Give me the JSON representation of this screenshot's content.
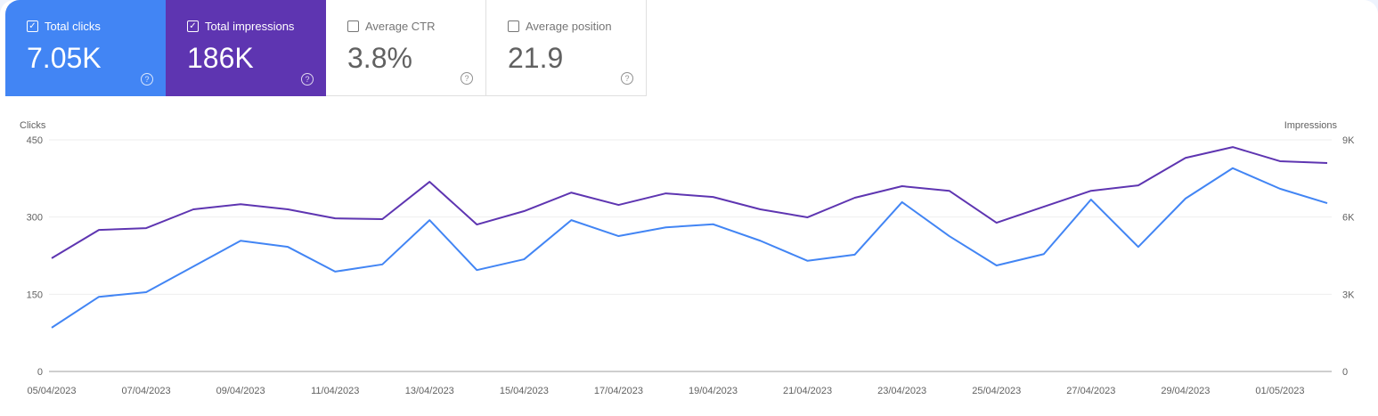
{
  "metrics": [
    {
      "label": "Total clicks",
      "value": "7.05K",
      "checked": true,
      "color": "#4285f4"
    },
    {
      "label": "Total impressions",
      "value": "186K",
      "checked": true,
      "color": "#5e35b1"
    },
    {
      "label": "Average CTR",
      "value": "3.8%",
      "checked": false
    },
    {
      "label": "Average position",
      "value": "21.9",
      "checked": false
    }
  ],
  "chart_data": {
    "type": "line",
    "left_axis": {
      "label": "Clicks",
      "ticks": [
        "0",
        "150",
        "300",
        "450"
      ],
      "range": [
        0,
        450
      ]
    },
    "right_axis": {
      "label": "Impressions",
      "ticks": [
        "0",
        "3K",
        "6K",
        "9K"
      ],
      "range": [
        0,
        9000
      ]
    },
    "x_tick_labels": [
      "05/04/2023",
      "07/04/2023",
      "09/04/2023",
      "11/04/2023",
      "13/04/2023",
      "15/04/2023",
      "17/04/2023",
      "19/04/2023",
      "21/04/2023",
      "23/04/2023",
      "25/04/2023",
      "27/04/2023",
      "29/04/2023",
      "01/05/2023"
    ],
    "x": [
      "05/04/2023",
      "06/04/2023",
      "07/04/2023",
      "08/04/2023",
      "09/04/2023",
      "10/04/2023",
      "11/04/2023",
      "12/04/2023",
      "13/04/2023",
      "14/04/2023",
      "15/04/2023",
      "16/04/2023",
      "17/04/2023",
      "18/04/2023",
      "19/04/2023",
      "20/04/2023",
      "21/04/2023",
      "22/04/2023",
      "23/04/2023",
      "24/04/2023",
      "25/04/2023",
      "26/04/2023",
      "27/04/2023",
      "28/04/2023",
      "29/04/2023",
      "30/04/2023",
      "01/05/2023",
      "02/05/2023"
    ],
    "grid": true,
    "series": [
      {
        "name": "Clicks",
        "axis": "left",
        "color": "#4285f4",
        "values": [
          85,
          145,
          154,
          204,
          254,
          242,
          194,
          208,
          294,
          197,
          218,
          294,
          263,
          280,
          286,
          254,
          215,
          227,
          329,
          263,
          206,
          228,
          334,
          242,
          336,
          395,
          355,
          327
        ]
      },
      {
        "name": "Impressions",
        "axis": "right",
        "color": "#5e35b1",
        "values": [
          4400,
          5500,
          5570,
          6300,
          6500,
          6300,
          5950,
          5920,
          7370,
          5710,
          6230,
          6950,
          6470,
          6920,
          6780,
          6300,
          5990,
          6750,
          7200,
          7020,
          5780,
          6400,
          7020,
          7230,
          8300,
          8720,
          8170,
          8100
        ]
      }
    ]
  }
}
